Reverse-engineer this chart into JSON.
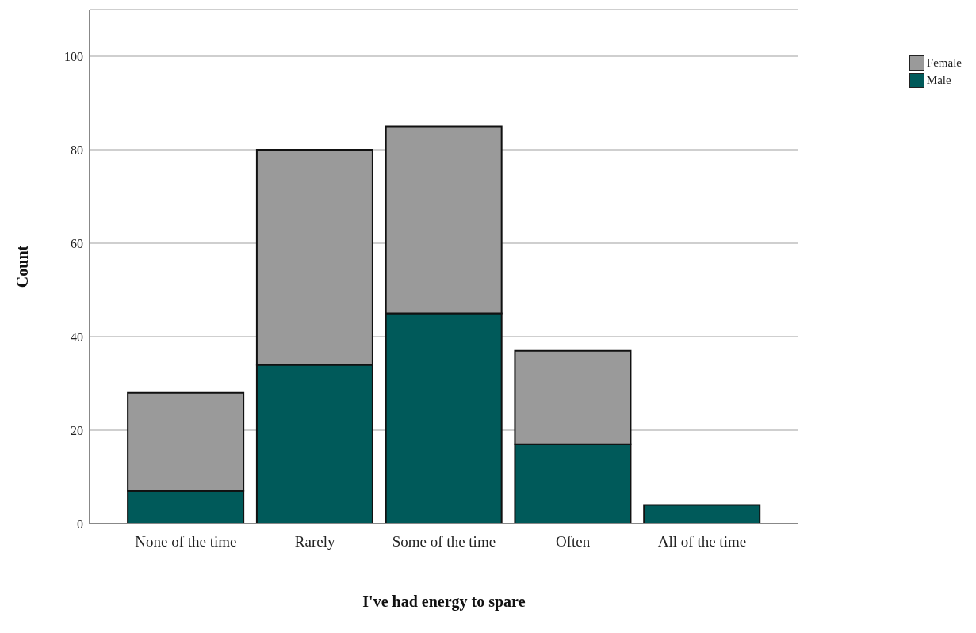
{
  "chart_data": {
    "type": "bar",
    "xlabel": "I've had energy to spare",
    "ylabel": "Count",
    "categories": [
      "None of the time",
      "Rarely",
      "Some of the time",
      "Often",
      "All of the time"
    ],
    "stacked": true,
    "series": [
      {
        "name": "Male",
        "color": "#005a5a",
        "values": [
          7,
          34,
          45,
          17,
          4
        ]
      },
      {
        "name": "Female",
        "color": "#9a9a9a",
        "values": [
          21,
          46,
          40,
          20,
          0
        ]
      }
    ],
    "ylim": [
      0,
      110
    ],
    "yticks": [
      0,
      20,
      40,
      60,
      80,
      100
    ],
    "grid": "y",
    "legend": "top right"
  }
}
